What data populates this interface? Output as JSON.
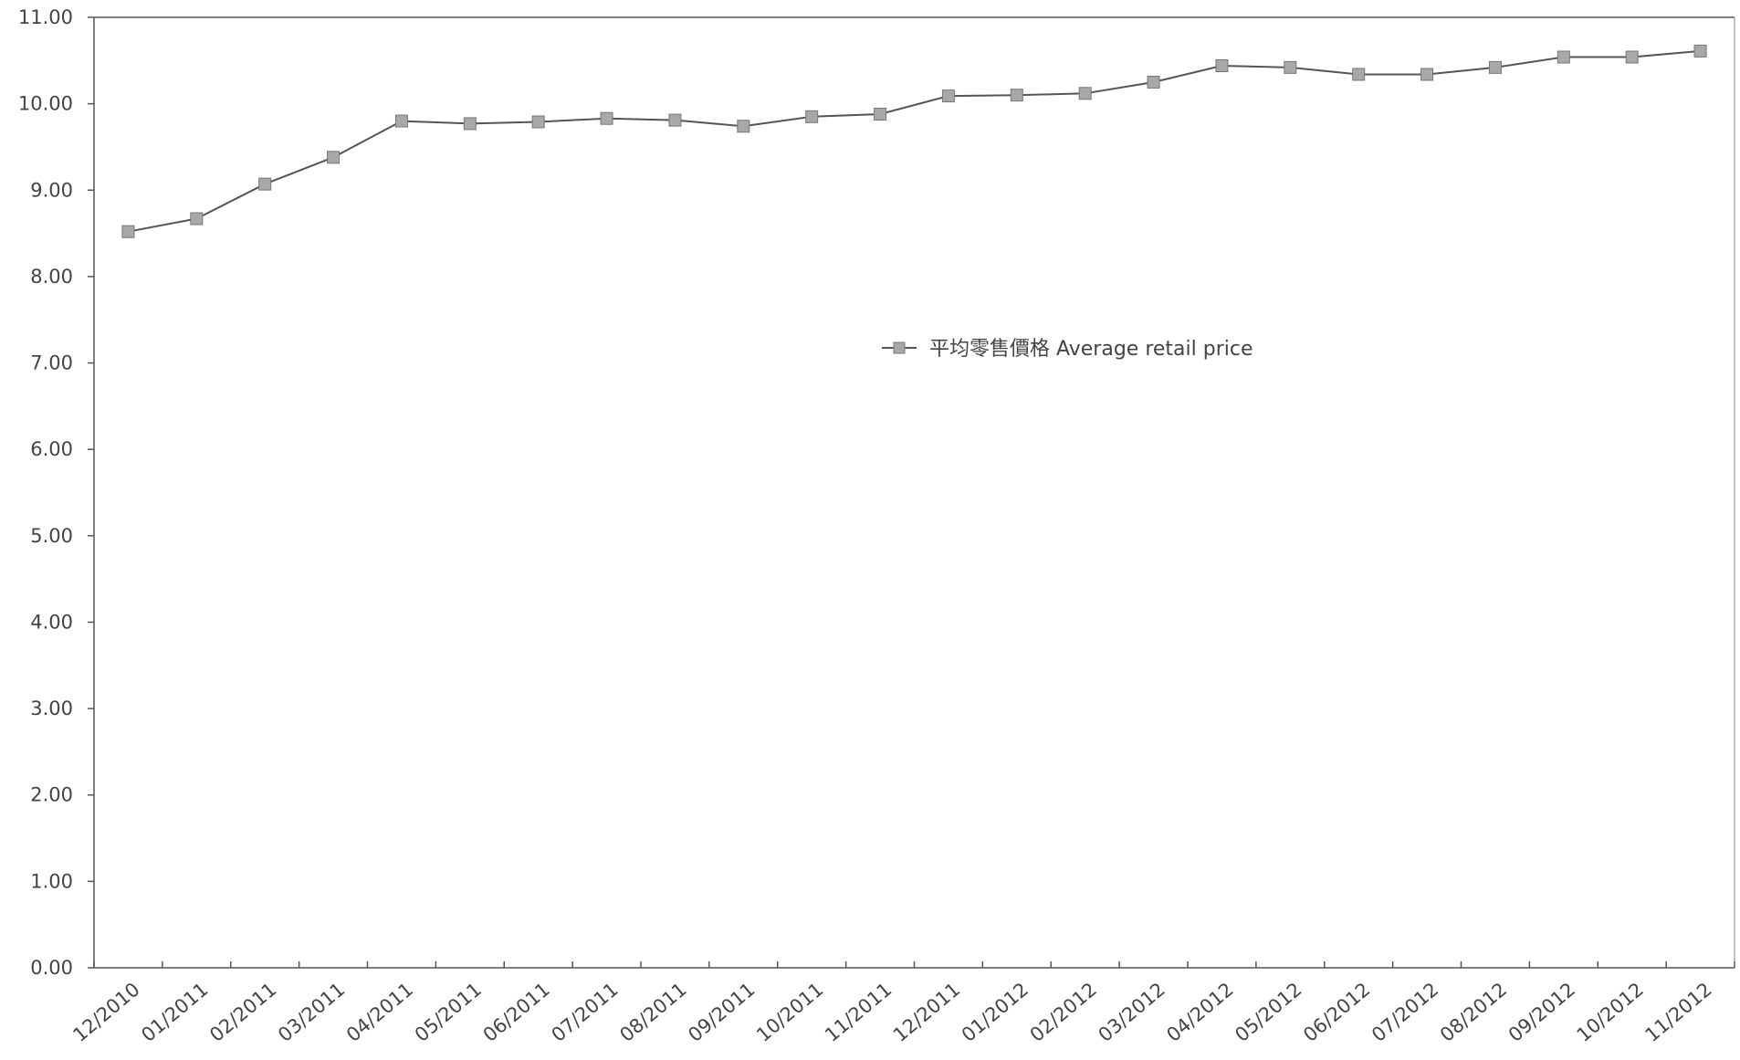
{
  "chart_data": {
    "type": "line",
    "title": "",
    "xlabel": "",
    "ylabel": "",
    "ylim": [
      0,
      11
    ],
    "y_ticks": [
      "0.00",
      "1.00",
      "2.00",
      "3.00",
      "4.00",
      "5.00",
      "6.00",
      "7.00",
      "8.00",
      "9.00",
      "10.00",
      "11.00"
    ],
    "grid": false,
    "legend_position": "center-right",
    "categories": [
      "12/2010",
      "01/2011",
      "02/2011",
      "03/2011",
      "04/2011",
      "05/2011",
      "06/2011",
      "07/2011",
      "08/2011",
      "09/2011",
      "10/2011",
      "11/2011",
      "12/2011",
      "01/2012",
      "02/2012",
      "03/2012",
      "04/2012",
      "05/2012",
      "06/2012",
      "07/2012",
      "08/2012",
      "09/2012",
      "10/2012",
      "11/2012"
    ],
    "series": [
      {
        "name": "平均零售價格 Average retail price",
        "color": "#555555",
        "marker_color": "#a8a8a8",
        "values": [
          8.52,
          8.67,
          9.07,
          9.38,
          9.8,
          9.77,
          9.79,
          9.83,
          9.81,
          9.74,
          9.85,
          9.88,
          10.09,
          10.1,
          10.12,
          10.25,
          10.44,
          10.42,
          10.34,
          10.34,
          10.42,
          10.54,
          10.54,
          10.61
        ]
      }
    ]
  }
}
